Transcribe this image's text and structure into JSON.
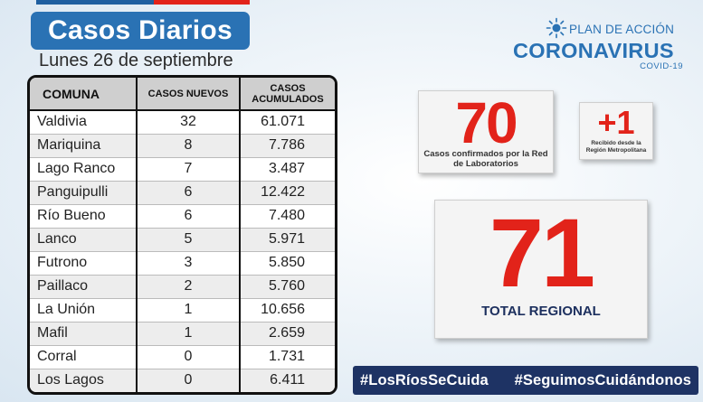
{
  "header": {
    "title": "Casos Diarios",
    "date": "Lunes 26 de septiembre"
  },
  "logo": {
    "plan": "PLAN DE ACCIÓN",
    "name": "CORONAVIRUS",
    "sub": "COVID-19"
  },
  "table": {
    "columns": [
      "COMUNA",
      "CASOS NUEVOS",
      "CASOS ACUMULADOS"
    ],
    "rows": [
      [
        "Valdivia",
        "32",
        "61.071"
      ],
      [
        "Mariquina",
        "8",
        "7.786"
      ],
      [
        "Lago Ranco",
        "7",
        "3.487"
      ],
      [
        "Panguipulli",
        "6",
        "12.422"
      ],
      [
        "Río Bueno",
        "6",
        "7.480"
      ],
      [
        "Lanco",
        "5",
        "5.971"
      ],
      [
        "Futrono",
        "3",
        "5.850"
      ],
      [
        "Paillaco",
        "2",
        "5.760"
      ],
      [
        "La Unión",
        "1",
        "10.656"
      ],
      [
        "Mafil",
        "1",
        "2.659"
      ],
      [
        "Corral",
        "0",
        "1.731"
      ],
      [
        "Los Lagos",
        "0",
        "6.411"
      ]
    ]
  },
  "stats": {
    "lab_count": "70",
    "lab_label": "Casos confirmados por la Red de Laboratorios",
    "metro_count": "+1",
    "metro_label": "Recibido desde la Región Metropolitana",
    "total_count": "71",
    "total_label": "TOTAL REGIONAL"
  },
  "hashtags": [
    "#LosRíosSeCuida",
    "#SeguimosCuidándonos"
  ],
  "colors": {
    "accent_blue": "#2a72b4",
    "number_red": "#e2231a",
    "navy": "#1e3364"
  }
}
